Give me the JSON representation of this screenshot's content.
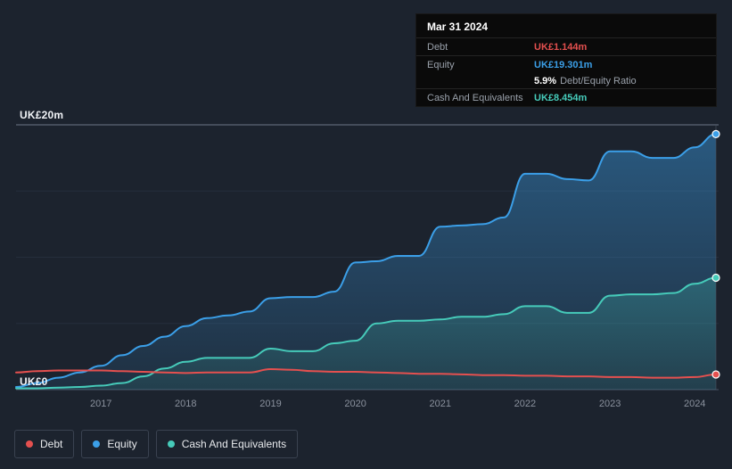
{
  "colors": {
    "background": "#1c232e",
    "debt": "#e4504f",
    "equity": "#3b9fe8",
    "cash": "#46cbba"
  },
  "axis": {
    "y_top": "UK£20m",
    "y_bottom": "UK£0"
  },
  "tooltip": {
    "date": "Mar 31 2024",
    "debt_label": "Debt",
    "debt_value": "UK£1.144m",
    "equity_label": "Equity",
    "equity_value": "UK£19.301m",
    "ratio_value": "5.9%",
    "ratio_label": "Debt/Equity Ratio",
    "cash_label": "Cash And Equivalents",
    "cash_value": "UK£8.454m"
  },
  "legend": [
    {
      "label": "Debt",
      "color": "#e4504f"
    },
    {
      "label": "Equity",
      "color": "#3b9fe8"
    },
    {
      "label": "Cash And Equivalents",
      "color": "#46cbba"
    }
  ],
  "chart_data": {
    "type": "area",
    "title": "",
    "x_ticks": [
      2017,
      2018,
      2019,
      2020,
      2021,
      2022,
      2023,
      2024
    ],
    "xlim": [
      2016,
      2024.25
    ],
    "ylim": [
      0,
      20
    ],
    "y_gridlines": [
      0,
      5,
      10,
      15,
      20
    ],
    "y_tick_labels": [
      "UK£0",
      "UK£20m"
    ],
    "x": [
      2016,
      2016.25,
      2016.5,
      2016.75,
      2017,
      2017.25,
      2017.5,
      2017.75,
      2018,
      2018.25,
      2018.5,
      2018.75,
      2019,
      2019.25,
      2019.5,
      2019.75,
      2020,
      2020.25,
      2020.5,
      2020.75,
      2021,
      2021.25,
      2021.5,
      2021.75,
      2022,
      2022.25,
      2022.5,
      2022.75,
      2023,
      2023.25,
      2023.5,
      2023.75,
      2024,
      2024.25
    ],
    "series": [
      {
        "name": "Debt",
        "color": "#e4504f",
        "area": false,
        "values": [
          1.3,
          1.4,
          1.45,
          1.45,
          1.45,
          1.4,
          1.35,
          1.3,
          1.25,
          1.3,
          1.3,
          1.3,
          1.55,
          1.5,
          1.4,
          1.35,
          1.35,
          1.3,
          1.25,
          1.2,
          1.2,
          1.15,
          1.1,
          1.1,
          1.05,
          1.05,
          1.0,
          1.0,
          0.95,
          0.95,
          0.9,
          0.9,
          0.95,
          1.144
        ]
      },
      {
        "name": "Equity",
        "color": "#3b9fe8",
        "area": true,
        "values": [
          0.2,
          0.5,
          0.9,
          1.3,
          1.8,
          2.6,
          3.3,
          4.0,
          4.8,
          5.4,
          5.6,
          5.9,
          6.9,
          7.0,
          7.0,
          7.4,
          9.6,
          9.7,
          10.1,
          10.1,
          12.3,
          12.4,
          12.5,
          13.0,
          16.3,
          16.3,
          15.9,
          15.8,
          18.0,
          18.0,
          17.5,
          17.5,
          18.3,
          19.301
        ]
      },
      {
        "name": "Cash And Equivalents",
        "color": "#46cbba",
        "area": true,
        "values": [
          0.1,
          0.1,
          0.15,
          0.2,
          0.3,
          0.5,
          1.0,
          1.6,
          2.1,
          2.4,
          2.4,
          2.4,
          3.1,
          2.9,
          2.9,
          3.5,
          3.7,
          5.0,
          5.2,
          5.2,
          5.3,
          5.5,
          5.5,
          5.7,
          6.3,
          6.3,
          5.8,
          5.8,
          7.1,
          7.2,
          7.2,
          7.3,
          8.0,
          8.454
        ]
      }
    ]
  }
}
